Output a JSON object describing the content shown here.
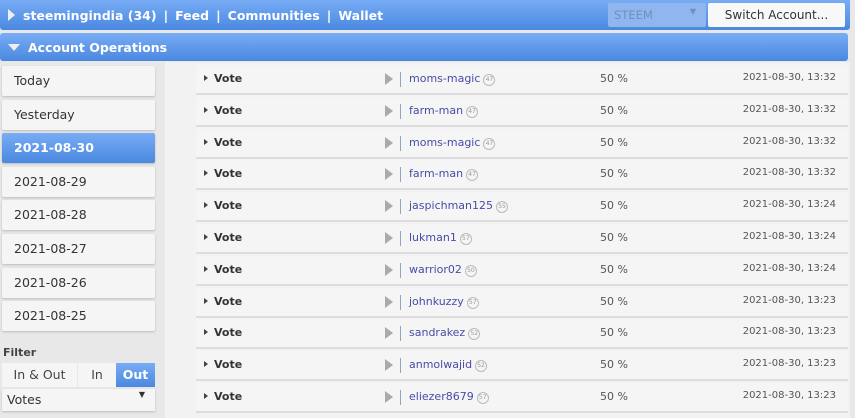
{
  "topbar": {
    "account": "steemingindia (34)",
    "links": [
      "Feed",
      "Communities",
      "Wallet"
    ],
    "separator": "|",
    "currency": "STEEM",
    "switch_label": "Switch Account..."
  },
  "section": {
    "title": "Account Operations"
  },
  "days": [
    {
      "label": "Today"
    },
    {
      "label": "Yesterday"
    },
    {
      "label": "2021-08-30",
      "active": true
    },
    {
      "label": "2021-08-29"
    },
    {
      "label": "2021-08-28"
    },
    {
      "label": "2021-08-27"
    },
    {
      "label": "2021-08-26"
    },
    {
      "label": "2021-08-25"
    }
  ],
  "filter": {
    "label": "Filter",
    "options": [
      "In & Out",
      "In",
      "Out"
    ],
    "selected": "Out",
    "type": "Votes"
  },
  "operations": [
    {
      "op": "Vote",
      "user": "moms-magic",
      "rep": "47",
      "weight": "50 %",
      "time": "2021-08-30, 13:32"
    },
    {
      "op": "Vote",
      "user": "farm-man",
      "rep": "47",
      "weight": "50 %",
      "time": "2021-08-30, 13:32"
    },
    {
      "op": "Vote",
      "user": "moms-magic",
      "rep": "47",
      "weight": "50 %",
      "time": "2021-08-30, 13:32"
    },
    {
      "op": "Vote",
      "user": "farm-man",
      "rep": "47",
      "weight": "50 %",
      "time": "2021-08-30, 13:32"
    },
    {
      "op": "Vote",
      "user": "jaspichman125",
      "rep": "55",
      "weight": "50 %",
      "time": "2021-08-30, 13:24"
    },
    {
      "op": "Vote",
      "user": "lukman1",
      "rep": "57",
      "weight": "50 %",
      "time": "2021-08-30, 13:24"
    },
    {
      "op": "Vote",
      "user": "warrior02",
      "rep": "50",
      "weight": "50 %",
      "time": "2021-08-30, 13:24"
    },
    {
      "op": "Vote",
      "user": "johnkuzzy",
      "rep": "57",
      "weight": "50 %",
      "time": "2021-08-30, 13:23"
    },
    {
      "op": "Vote",
      "user": "sandrakez",
      "rep": "52",
      "weight": "50 %",
      "time": "2021-08-30, 13:23"
    },
    {
      "op": "Vote",
      "user": "anmolwajid",
      "rep": "52",
      "weight": "50 %",
      "time": "2021-08-30, 13:23"
    },
    {
      "op": "Vote",
      "user": "eliezer8679",
      "rep": "57",
      "weight": "50 %",
      "time": "2021-08-30, 13:23"
    }
  ]
}
